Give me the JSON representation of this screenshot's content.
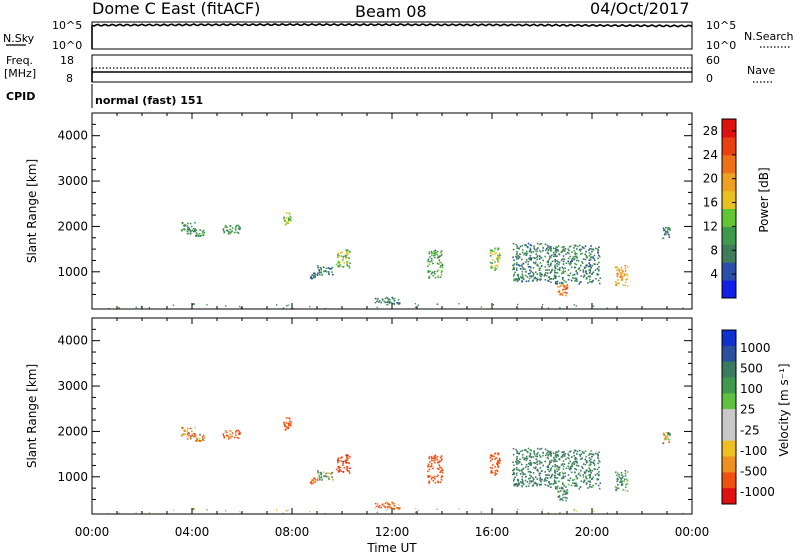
{
  "header": {
    "station": "Dome C East (fitACF)",
    "beam": "Beam 08",
    "date": "04/Oct/2017"
  },
  "status_panels": {
    "nsky_label": "N.Sky",
    "nsearch_label": "N.Search",
    "freq_label_line1": "Freq.",
    "freq_label_line2": "[MHz]",
    "nave_label": "Nave",
    "cpid_label": "CPID",
    "cpid_text": "normal (fast) 151",
    "noise_left_ticks": [
      "10^5",
      "10^0"
    ],
    "noise_right_ticks": [
      "10^5",
      "10^0"
    ],
    "freq_left_ticks": [
      "18",
      "8"
    ],
    "nave_right_ticks": [
      "60",
      "0"
    ]
  },
  "axes": {
    "ylabel": "Slant Range [km]",
    "xlabel": "Time UT",
    "y_ticks": [
      "1000",
      "2000",
      "3000",
      "4000"
    ],
    "x_ticks": [
      "00:00",
      "04:00",
      "08:00",
      "12:00",
      "16:00",
      "20:00",
      "00:00"
    ]
  },
  "power_scale": {
    "label": "Power [dB]",
    "tick_labels": [
      "4",
      "8",
      "12",
      "16",
      "20",
      "24",
      "28"
    ],
    "colors": [
      "#1020e8",
      "#2a4fa8",
      "#3f7d5a",
      "#3e9a4a",
      "#62c634",
      "#e8c020",
      "#f0a020",
      "#f07018",
      "#e84010",
      "#e01010"
    ]
  },
  "velocity_scale": {
    "label": "Velocity [m s⁻¹]",
    "tick_labels": [
      "1000",
      "500",
      "100",
      "25",
      "-25",
      "-100",
      "-500",
      "-1000"
    ],
    "colors": [
      "#1030d0",
      "#2a50a0",
      "#3a7a60",
      "#3f9a50",
      "#60c040",
      "#c8c8c8",
      "#c8c8c8",
      "#f0c020",
      "#f09020",
      "#f05010",
      "#e01010"
    ]
  },
  "chart_data": [
    {
      "type": "line",
      "title": "N.Sky / N.Search",
      "x": [
        "00:00",
        "04:00",
        "08:00",
        "12:00",
        "16:00",
        "20:00",
        "24:00"
      ],
      "series": [
        {
          "name": "N.Sky",
          "values": [
            90000,
            110000,
            120000,
            115000,
            105000,
            80000,
            60000
          ]
        }
      ],
      "yscale": "log",
      "ylim": [
        1,
        100000
      ]
    },
    {
      "type": "line",
      "title": "Freq. [MHz] / Nave",
      "x": [
        "00:00",
        "04:00",
        "08:00",
        "12:00",
        "16:00",
        "20:00",
        "24:00"
      ],
      "series": [
        {
          "name": "Freq.",
          "values": [
            11.5,
            11.5,
            11.5,
            11.5,
            11.5,
            11.5,
            11.5
          ]
        },
        {
          "name": "Nave",
          "values": [
            25,
            25,
            25,
            25,
            25,
            25,
            25
          ]
        }
      ],
      "ylim": [
        8,
        18
      ],
      "y2lim": [
        0,
        60
      ]
    },
    {
      "type": "scatter",
      "title": "Power [dB]",
      "xlabel": "Time UT",
      "ylabel": "Slant Range [km]",
      "xlim": [
        0,
        24
      ],
      "ylim": [
        180,
        4500
      ],
      "clusters": [
        {
          "t0": 3.55,
          "t1": 4.1,
          "r0": 1830,
          "r1": 2120,
          "pow": 9
        },
        {
          "t0": 4.1,
          "t1": 4.5,
          "r0": 1800,
          "r1": 1950,
          "pow": 10
        },
        {
          "t0": 5.2,
          "t1": 5.9,
          "r0": 1850,
          "r1": 2050,
          "pow": 10
        },
        {
          "t0": 7.65,
          "t1": 7.95,
          "r0": 2050,
          "r1": 2320,
          "pow": 15
        },
        {
          "t0": 8.7,
          "t1": 9.0,
          "r0": 850,
          "r1": 1000,
          "pow": 7
        },
        {
          "t0": 9.0,
          "t1": 9.6,
          "r0": 950,
          "r1": 1150,
          "pow": 8
        },
        {
          "t0": 9.75,
          "t1": 10.3,
          "r0": 1100,
          "r1": 1500,
          "pow": 14
        },
        {
          "t0": 11.3,
          "t1": 12.3,
          "r0": 300,
          "r1": 460,
          "pow": 8
        },
        {
          "t0": 13.4,
          "t1": 14.0,
          "r0": 880,
          "r1": 1500,
          "pow": 11
        },
        {
          "t0": 15.9,
          "t1": 16.3,
          "r0": 1050,
          "r1": 1550,
          "pow": 14
        },
        {
          "t0": 16.8,
          "t1": 18.2,
          "r0": 800,
          "r1": 1650,
          "pow": 8
        },
        {
          "t0": 18.2,
          "t1": 20.3,
          "r0": 750,
          "r1": 1600,
          "pow": 8
        },
        {
          "t0": 18.6,
          "t1": 19.0,
          "r0": 480,
          "r1": 760,
          "pow": 22
        },
        {
          "t0": 20.9,
          "t1": 21.4,
          "r0": 700,
          "r1": 1150,
          "pow": 20
        },
        {
          "t0": 22.8,
          "t1": 23.1,
          "r0": 1750,
          "r1": 2000,
          "pow": 8
        }
      ]
    },
    {
      "type": "scatter",
      "title": "Velocity [m s⁻¹]",
      "xlabel": "Time UT",
      "ylabel": "Slant Range [km]",
      "xlim": [
        0,
        24
      ],
      "ylim": [
        180,
        4500
      ],
      "clusters": [
        {
          "t0": 3.55,
          "t1": 4.1,
          "r0": 1830,
          "r1": 2120,
          "vel": -90
        },
        {
          "t0": 4.1,
          "t1": 4.5,
          "r0": 1800,
          "r1": 1950,
          "vel": -60
        },
        {
          "t0": 5.2,
          "t1": 5.9,
          "r0": 1850,
          "r1": 2050,
          "vel": -120
        },
        {
          "t0": 7.65,
          "t1": 7.95,
          "r0": 2050,
          "r1": 2320,
          "vel": -300
        },
        {
          "t0": 8.7,
          "t1": 9.0,
          "r0": 850,
          "r1": 1000,
          "vel": -150
        },
        {
          "t0": 9.0,
          "t1": 9.6,
          "r0": 950,
          "r1": 1150,
          "vel": 80
        },
        {
          "t0": 9.75,
          "t1": 10.3,
          "r0": 1100,
          "r1": 1500,
          "vel": -400
        },
        {
          "t0": 11.3,
          "t1": 12.3,
          "r0": 300,
          "r1": 460,
          "vel": -150
        },
        {
          "t0": 13.4,
          "t1": 14.0,
          "r0": 880,
          "r1": 1500,
          "vel": -300
        },
        {
          "t0": 15.9,
          "t1": 16.3,
          "r0": 1050,
          "r1": 1550,
          "vel": -350
        },
        {
          "t0": 16.8,
          "t1": 18.2,
          "r0": 800,
          "r1": 1650,
          "vel": 200
        },
        {
          "t0": 18.2,
          "t1": 20.3,
          "r0": 750,
          "r1": 1600,
          "vel": 180
        },
        {
          "t0": 18.6,
          "t1": 19.0,
          "r0": 480,
          "r1": 760,
          "vel": 150
        },
        {
          "t0": 20.9,
          "t1": 21.4,
          "r0": 700,
          "r1": 1150,
          "vel": 150
        },
        {
          "t0": 22.8,
          "t1": 23.1,
          "r0": 1750,
          "r1": 2000,
          "vel": 10
        }
      ]
    }
  ]
}
